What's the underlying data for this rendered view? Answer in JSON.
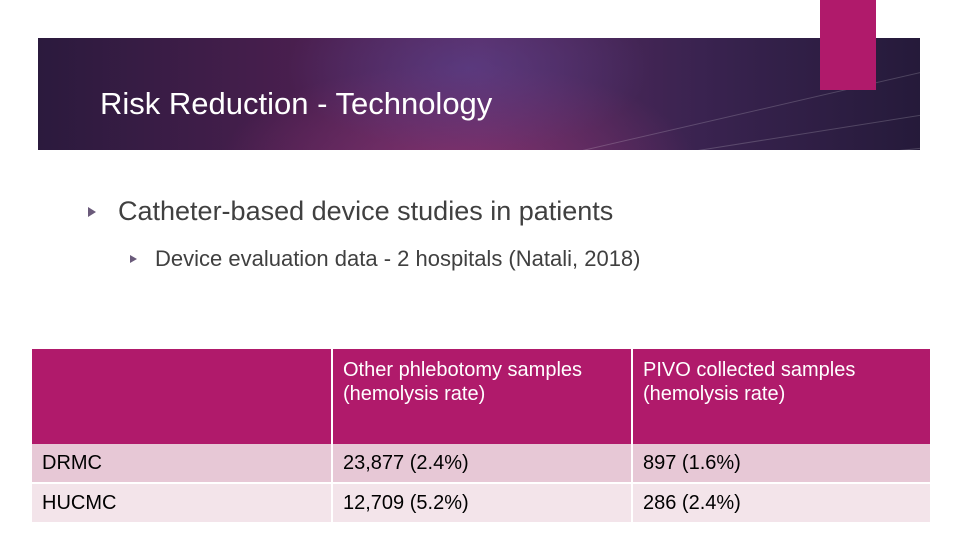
{
  "slide": {
    "title": "Risk Reduction - Technology",
    "bullets": [
      {
        "text": "Catheter-based device studies in patients",
        "level": 1
      },
      {
        "text": "Device evaluation data - 2 hospitals (Natali, 2018)",
        "level": 2
      }
    ]
  },
  "table": {
    "headers": [
      "",
      "Other phlebotomy samples (hemolysis rate)",
      "PIVO collected samples (hemolysis rate)"
    ],
    "rows": [
      [
        "DRMC",
        "23,877 (2.4%)",
        "897 (1.6%)"
      ],
      [
        "HUCMC",
        "12,709 (5.2%)",
        "286 (2.4%)"
      ]
    ]
  },
  "colors": {
    "accent": "#b01a6b",
    "header_band": "#4a1f4f",
    "row_1": "#e7c8d6",
    "row_2": "#f3e4ea",
    "body_text": "#404040"
  }
}
